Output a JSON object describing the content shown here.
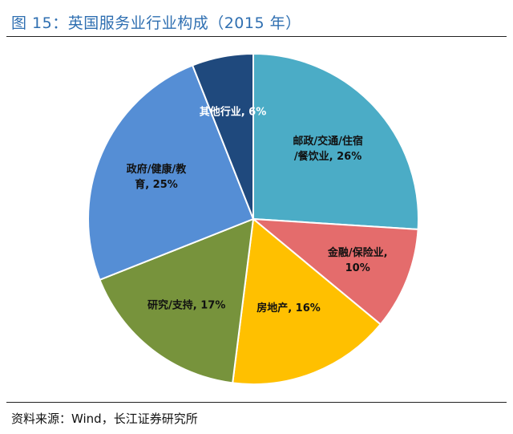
{
  "figure": {
    "title": "图 15：英国服务业行业构成（2015 年）",
    "source": "资料来源：Wind，长江证券研究所"
  },
  "chart_data": {
    "type": "pie",
    "title": "图 15：英国服务业行业构成（2015 年）",
    "start_angle_deg": 0,
    "direction": "clockwise",
    "slices": [
      {
        "label": "邮政/交通/住宿/餐饮业",
        "value": 26,
        "display": [
          "邮政/交通/住宿",
          "/餐饮业, 26%"
        ],
        "color": "#4bacc6",
        "text_color": "#111111"
      },
      {
        "label": "金融/保险业",
        "value": 10,
        "display": [
          "金融/保险业,",
          "10%"
        ],
        "color": "#e46c6c",
        "text_color": "#111111"
      },
      {
        "label": "房地产",
        "value": 16,
        "display": [
          "房地产, 16%"
        ],
        "color": "#ffc000",
        "text_color": "#111111"
      },
      {
        "label": "研究/支持",
        "value": 17,
        "display": [
          "研究/支持, 17%"
        ],
        "color": "#77933c",
        "text_color": "#111111"
      },
      {
        "label": "政府/健康/教育",
        "value": 25,
        "display": [
          "政府/健康/教",
          "育, 25%"
        ],
        "color": "#558ed5",
        "text_color": "#111111"
      },
      {
        "label": "其他行业",
        "value": 6,
        "display": [
          "其他行业, 6%"
        ],
        "color": "#1f497d",
        "text_color": "#ffffff"
      }
    ]
  }
}
